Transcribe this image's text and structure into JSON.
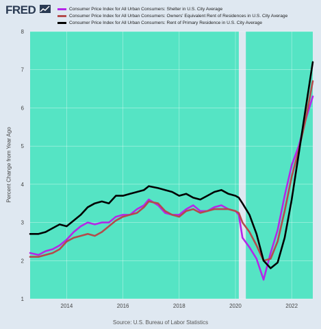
{
  "header": {
    "logo_text": "FRED",
    "logo_icon": "trend-line-icon"
  },
  "source_note": "Source: U.S. Bureau of Labor Statistics",
  "chart_data": {
    "type": "line",
    "title": "",
    "xlabel": "",
    "ylabel": "Percent Change from Year Ago",
    "xlim": [
      2012.7,
      2022.75
    ],
    "ylim": [
      1,
      8
    ],
    "x_ticks": [
      2014,
      2016,
      2018,
      2020,
      2022
    ],
    "y_ticks": [
      1,
      2,
      3,
      4,
      5,
      6,
      7,
      8
    ],
    "grid": true,
    "legend_position": "top",
    "plot_background": "#55e4c4",
    "recession_band": [
      2020.12,
      2020.37
    ],
    "recession_color": "#dfe8f1",
    "series": [
      {
        "name": "Consumer Price Index for All Urban Consumers: Shelter in U.S. City Average",
        "color": "#b526e8",
        "points": [
          [
            2012.7,
            2.2
          ],
          [
            2013.0,
            2.15
          ],
          [
            2013.25,
            2.25
          ],
          [
            2013.5,
            2.3
          ],
          [
            2013.75,
            2.4
          ],
          [
            2014.0,
            2.55
          ],
          [
            2014.25,
            2.75
          ],
          [
            2014.5,
            2.9
          ],
          [
            2014.75,
            3.0
          ],
          [
            2015.0,
            2.95
          ],
          [
            2015.25,
            3.0
          ],
          [
            2015.5,
            3.0
          ],
          [
            2015.75,
            3.15
          ],
          [
            2016.0,
            3.2
          ],
          [
            2016.25,
            3.2
          ],
          [
            2016.5,
            3.35
          ],
          [
            2016.75,
            3.45
          ],
          [
            2016.92,
            3.6
          ],
          [
            2017.25,
            3.45
          ],
          [
            2017.5,
            3.25
          ],
          [
            2017.75,
            3.2
          ],
          [
            2018.0,
            3.2
          ],
          [
            2018.25,
            3.35
          ],
          [
            2018.5,
            3.45
          ],
          [
            2018.75,
            3.3
          ],
          [
            2019.0,
            3.3
          ],
          [
            2019.25,
            3.4
          ],
          [
            2019.5,
            3.45
          ],
          [
            2019.75,
            3.35
          ],
          [
            2020.0,
            3.3
          ],
          [
            2020.12,
            3.2
          ],
          [
            2020.25,
            2.6
          ],
          [
            2020.5,
            2.35
          ],
          [
            2020.75,
            2.05
          ],
          [
            2021.0,
            1.5
          ],
          [
            2021.25,
            2.2
          ],
          [
            2021.5,
            2.8
          ],
          [
            2021.75,
            3.7
          ],
          [
            2022.0,
            4.5
          ],
          [
            2022.25,
            5.0
          ],
          [
            2022.5,
            5.7
          ],
          [
            2022.75,
            6.3
          ]
        ]
      },
      {
        "name": "Consumer Price Index for All Urban Consumers: Owners' Equivalent Rent of Residences in U.S. City Average",
        "color": "#b34b4b",
        "points": [
          [
            2012.7,
            2.1
          ],
          [
            2013.0,
            2.1
          ],
          [
            2013.25,
            2.15
          ],
          [
            2013.5,
            2.2
          ],
          [
            2013.75,
            2.3
          ],
          [
            2014.0,
            2.5
          ],
          [
            2014.25,
            2.6
          ],
          [
            2014.5,
            2.65
          ],
          [
            2014.75,
            2.7
          ],
          [
            2015.0,
            2.65
          ],
          [
            2015.25,
            2.75
          ],
          [
            2015.5,
            2.9
          ],
          [
            2015.75,
            3.05
          ],
          [
            2016.0,
            3.15
          ],
          [
            2016.25,
            3.2
          ],
          [
            2016.5,
            3.25
          ],
          [
            2016.75,
            3.4
          ],
          [
            2016.92,
            3.55
          ],
          [
            2017.25,
            3.5
          ],
          [
            2017.5,
            3.3
          ],
          [
            2017.75,
            3.2
          ],
          [
            2018.0,
            3.15
          ],
          [
            2018.25,
            3.3
          ],
          [
            2018.5,
            3.35
          ],
          [
            2018.75,
            3.25
          ],
          [
            2019.0,
            3.3
          ],
          [
            2019.25,
            3.35
          ],
          [
            2019.5,
            3.35
          ],
          [
            2019.75,
            3.35
          ],
          [
            2020.0,
            3.3
          ],
          [
            2020.12,
            3.25
          ],
          [
            2020.25,
            3.0
          ],
          [
            2020.5,
            2.75
          ],
          [
            2020.75,
            2.4
          ],
          [
            2021.0,
            2.0
          ],
          [
            2021.25,
            2.05
          ],
          [
            2021.5,
            2.5
          ],
          [
            2021.75,
            3.3
          ],
          [
            2022.0,
            4.2
          ],
          [
            2022.25,
            4.9
          ],
          [
            2022.5,
            5.7
          ],
          [
            2022.75,
            6.7
          ]
        ]
      },
      {
        "name": "Consumer Price Index for All Urban Consumers: Rent of Primary Residence in U.S. City Average",
        "color": "#000000",
        "points": [
          [
            2012.7,
            2.7
          ],
          [
            2013.0,
            2.7
          ],
          [
            2013.25,
            2.75
          ],
          [
            2013.5,
            2.85
          ],
          [
            2013.75,
            2.95
          ],
          [
            2014.0,
            2.9
          ],
          [
            2014.25,
            3.05
          ],
          [
            2014.5,
            3.2
          ],
          [
            2014.75,
            3.4
          ],
          [
            2015.0,
            3.5
          ],
          [
            2015.25,
            3.55
          ],
          [
            2015.5,
            3.5
          ],
          [
            2015.75,
            3.7
          ],
          [
            2016.0,
            3.7
          ],
          [
            2016.25,
            3.75
          ],
          [
            2016.5,
            3.8
          ],
          [
            2016.75,
            3.85
          ],
          [
            2016.92,
            3.95
          ],
          [
            2017.25,
            3.9
          ],
          [
            2017.5,
            3.85
          ],
          [
            2017.75,
            3.8
          ],
          [
            2018.0,
            3.7
          ],
          [
            2018.25,
            3.75
          ],
          [
            2018.5,
            3.65
          ],
          [
            2018.75,
            3.6
          ],
          [
            2019.0,
            3.7
          ],
          [
            2019.25,
            3.8
          ],
          [
            2019.5,
            3.85
          ],
          [
            2019.75,
            3.75
          ],
          [
            2020.0,
            3.7
          ],
          [
            2020.12,
            3.65
          ],
          [
            2020.25,
            3.5
          ],
          [
            2020.5,
            3.2
          ],
          [
            2020.75,
            2.7
          ],
          [
            2021.0,
            2.0
          ],
          [
            2021.25,
            1.8
          ],
          [
            2021.5,
            1.95
          ],
          [
            2021.75,
            2.6
          ],
          [
            2022.0,
            3.6
          ],
          [
            2022.25,
            4.8
          ],
          [
            2022.5,
            6.0
          ],
          [
            2022.75,
            7.2
          ]
        ]
      }
    ]
  }
}
